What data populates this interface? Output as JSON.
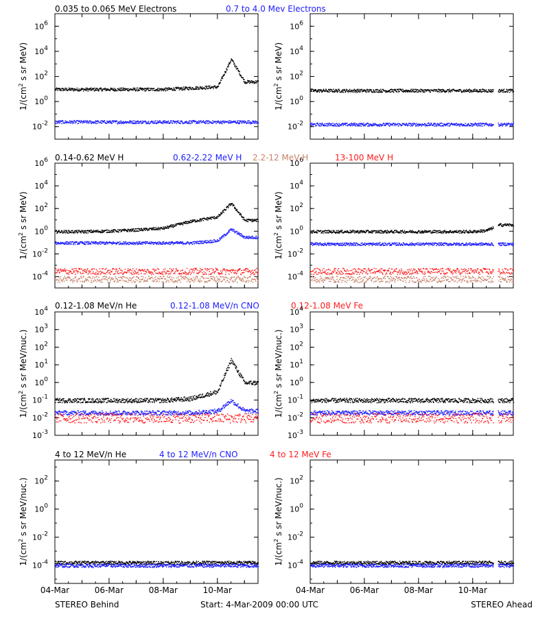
{
  "colors": {
    "black": "#000000",
    "blue": "#1c1cff",
    "tan": "#c8826a",
    "red": "#ff1c1c"
  },
  "footer": {
    "left": "STEREO Behind",
    "center": "Start:  4-Mar-2009 00:00 UTC",
    "right": "STEREO Ahead"
  },
  "x_tick_labels": [
    "04-Mar",
    "06-Mar",
    "08-Mar",
    "10-Mar"
  ],
  "chart_data": [
    {
      "type": "scatter",
      "row": 1,
      "legend": [
        {
          "text": "0.035 to 0.065 MeV Electrons",
          "color": "black"
        },
        {
          "text": "0.7 to 4.0 Mev Electrons",
          "color": "blue"
        }
      ],
      "ylabel": "1/(cm^2 s sr MeV)",
      "yscale": "log",
      "ylim_exp": [
        -3,
        7
      ],
      "y_ticks": [
        {
          "base": "10",
          "exp": "-2"
        },
        {
          "base": "10",
          "exp": "0"
        },
        {
          "base": "10",
          "exp": "2"
        },
        {
          "base": "10",
          "exp": "4"
        },
        {
          "base": "10",
          "exp": "6"
        }
      ],
      "x": [
        "2009-03-04",
        "2009-03-05",
        "2009-03-06",
        "2009-03-07",
        "2009-03-08",
        "2009-03-09",
        "2009-03-10",
        "2009-03-10T12",
        "2009-03-11"
      ],
      "panels": [
        {
          "spacecraft": "STEREO Behind",
          "series": [
            {
              "color": "black",
              "log10_values": [
                1.0,
                1.0,
                1.0,
                1.0,
                1.0,
                1.1,
                1.2,
                3.4,
                1.6
              ]
            },
            {
              "color": "blue",
              "log10_values": [
                -1.6,
                -1.6,
                -1.6,
                -1.6,
                -1.6,
                -1.6,
                -1.6,
                -1.6,
                -1.6
              ]
            }
          ]
        },
        {
          "spacecraft": "STEREO Ahead",
          "data_gap": [
            "2009-03-10T18",
            "2009-03-10T22"
          ],
          "series": [
            {
              "color": "black",
              "log10_values": [
                0.9,
                0.9,
                0.9,
                0.9,
                0.9,
                0.9,
                0.9,
                0.9,
                0.9
              ]
            },
            {
              "color": "blue",
              "log10_values": [
                -1.8,
                -1.8,
                -1.8,
                -1.8,
                -1.8,
                -1.8,
                -1.8,
                -1.8,
                -1.8
              ]
            }
          ]
        }
      ]
    },
    {
      "type": "scatter",
      "row": 2,
      "legend": [
        {
          "text": "0.14-0.62 MeV H",
          "color": "black"
        },
        {
          "text": "0.62-2.22 MeV H",
          "color": "blue"
        },
        {
          "text": "2.2-12 MeV H",
          "color": "tan"
        },
        {
          "text": "13-100 MeV H",
          "color": "red"
        }
      ],
      "ylabel": "1/(cm^2 s sr MeV)",
      "yscale": "log",
      "ylim_exp": [
        -5,
        6
      ],
      "y_ticks": [
        {
          "base": "10",
          "exp": "-4"
        },
        {
          "base": "10",
          "exp": "-2"
        },
        {
          "base": "10",
          "exp": "0"
        },
        {
          "base": "10",
          "exp": "2"
        },
        {
          "base": "10",
          "exp": "4"
        },
        {
          "base": "10",
          "exp": "6"
        }
      ],
      "x": [
        "2009-03-04",
        "2009-03-05",
        "2009-03-06",
        "2009-03-07",
        "2009-03-08",
        "2009-03-09",
        "2009-03-10",
        "2009-03-10T12",
        "2009-03-11"
      ],
      "panels": [
        {
          "spacecraft": "STEREO Behind",
          "series": [
            {
              "color": "black",
              "log10_values": [
                0.0,
                0.0,
                0.05,
                0.15,
                0.3,
                0.9,
                1.3,
                2.5,
                1.0
              ]
            },
            {
              "color": "blue",
              "log10_values": [
                -1.0,
                -1.0,
                -1.0,
                -1.0,
                -1.0,
                -1.0,
                -0.8,
                0.2,
                -0.5
              ]
            },
            {
              "color": "tan",
              "log10_values": [
                -4.2,
                -4.2,
                -4.2,
                -4.2,
                -4.2,
                -4.2,
                -4.2,
                -4.2,
                -4.2
              ]
            },
            {
              "color": "red",
              "log10_values": [
                -3.5,
                -3.5,
                -3.5,
                -3.5,
                -3.5,
                -3.5,
                -3.5,
                -3.5,
                -3.5
              ]
            }
          ]
        },
        {
          "spacecraft": "STEREO Ahead",
          "data_gap": [
            "2009-03-10T18",
            "2009-03-10T22"
          ],
          "series": [
            {
              "color": "black",
              "log10_values": [
                0.0,
                0.0,
                0.0,
                0.0,
                0.0,
                0.0,
                0.0,
                0.1,
                0.6
              ]
            },
            {
              "color": "blue",
              "log10_values": [
                -1.1,
                -1.1,
                -1.1,
                -1.1,
                -1.1,
                -1.1,
                -1.1,
                -1.1,
                -1.1
              ]
            },
            {
              "color": "tan",
              "log10_values": [
                -4.2,
                -4.2,
                -4.2,
                -4.2,
                -4.2,
                -4.2,
                -4.2,
                -4.2,
                -4.2
              ]
            },
            {
              "color": "red",
              "log10_values": [
                -3.5,
                -3.5,
                -3.5,
                -3.5,
                -3.5,
                -3.5,
                -3.5,
                -3.5,
                -3.5
              ]
            }
          ]
        }
      ]
    },
    {
      "type": "scatter",
      "row": 3,
      "legend": [
        {
          "text": "0.12-1.08 MeV/n He",
          "color": "black"
        },
        {
          "text": "0.12-1.08 MeV/n CNO",
          "color": "blue"
        },
        {
          "text": "0.12-1.08 MeV Fe",
          "color": "red"
        }
      ],
      "ylabel": "1/(cm^2 s sr MeV/nuc.)",
      "yscale": "log",
      "ylim_exp": [
        -3,
        4
      ],
      "y_ticks": [
        {
          "base": "10",
          "exp": "-3"
        },
        {
          "base": "10",
          "exp": "-2"
        },
        {
          "base": "10",
          "exp": "-1"
        },
        {
          "base": "10",
          "exp": "0"
        },
        {
          "base": "10",
          "exp": "1"
        },
        {
          "base": "10",
          "exp": "2"
        },
        {
          "base": "10",
          "exp": "3"
        },
        {
          "base": "10",
          "exp": "4"
        }
      ],
      "x": [
        "2009-03-04",
        "2009-03-05",
        "2009-03-06",
        "2009-03-07",
        "2009-03-08",
        "2009-03-09",
        "2009-03-10",
        "2009-03-10T12",
        "2009-03-11"
      ],
      "panels": [
        {
          "spacecraft": "STEREO Behind",
          "series": [
            {
              "color": "black",
              "log10_values": [
                -1.0,
                -1.0,
                -1.0,
                -1.0,
                -1.0,
                -0.9,
                -0.5,
                1.3,
                0.0
              ]
            },
            {
              "color": "blue",
              "log10_values": [
                -1.7,
                -1.7,
                -1.7,
                -1.7,
                -1.7,
                -1.7,
                -1.6,
                -1.0,
                -1.6
              ]
            },
            {
              "color": "red",
              "log10_values": [
                -2.0,
                -2.0,
                -2.0,
                -2.0,
                -2.0,
                -2.0,
                -2.0,
                -2.0,
                -2.0
              ]
            }
          ]
        },
        {
          "spacecraft": "STEREO Ahead",
          "data_gap": [
            "2009-03-10T18",
            "2009-03-10T22"
          ],
          "series": [
            {
              "color": "black",
              "log10_values": [
                -1.0,
                -1.0,
                -1.0,
                -1.0,
                -1.0,
                -1.0,
                -1.0,
                -1.0,
                -1.0
              ]
            },
            {
              "color": "blue",
              "log10_values": [
                -1.7,
                -1.7,
                -1.7,
                -1.7,
                -1.7,
                -1.7,
                -1.7,
                -1.7,
                -1.7
              ]
            },
            {
              "color": "red",
              "log10_values": [
                -2.0,
                -2.0,
                -2.0,
                -2.0,
                -2.0,
                -2.0,
                -2.0,
                -2.0,
                -2.0
              ]
            }
          ]
        }
      ]
    },
    {
      "type": "scatter",
      "row": 4,
      "legend": [
        {
          "text": "4 to 12 MeV/n He",
          "color": "black"
        },
        {
          "text": "4 to 12 MeV/n CNO",
          "color": "blue"
        },
        {
          "text": "4 to 12 MeV Fe",
          "color": "red"
        }
      ],
      "ylabel": "1/(cm^2 s sr MeV/nuc.)",
      "yscale": "log",
      "ylim_exp": [
        -5.3,
        3.5
      ],
      "y_ticks": [
        {
          "base": "10",
          "exp": "-4"
        },
        {
          "base": "10",
          "exp": "-2"
        },
        {
          "base": "10",
          "exp": "0"
        },
        {
          "base": "10",
          "exp": "2"
        }
      ],
      "x": [
        "2009-03-04",
        "2009-03-05",
        "2009-03-06",
        "2009-03-07",
        "2009-03-08",
        "2009-03-09",
        "2009-03-10",
        "2009-03-10T12",
        "2009-03-11"
      ],
      "panels": [
        {
          "spacecraft": "STEREO Behind",
          "series": [
            {
              "color": "black",
              "log10_values": [
                -3.8,
                -3.8,
                -3.8,
                -3.8,
                -3.8,
                -3.8,
                -3.8,
                -3.8,
                -3.8
              ]
            },
            {
              "color": "blue",
              "log10_values": [
                -4.0,
                -4.0,
                -4.0,
                -4.0,
                -4.0,
                -4.0,
                -4.0,
                -4.0,
                -4.0
              ]
            }
          ]
        },
        {
          "spacecraft": "STEREO Ahead",
          "data_gap": [
            "2009-03-10T18",
            "2009-03-10T22"
          ],
          "series": [
            {
              "color": "black",
              "log10_values": [
                -3.8,
                -3.8,
                -3.8,
                -3.8,
                -3.8,
                -3.8,
                -3.8,
                -3.8,
                -3.8
              ]
            },
            {
              "color": "blue",
              "log10_values": [
                -4.0,
                -4.0,
                -4.0,
                -4.0,
                -4.0,
                -4.0,
                -4.0,
                -4.0,
                -4.0
              ]
            }
          ]
        }
      ]
    }
  ]
}
